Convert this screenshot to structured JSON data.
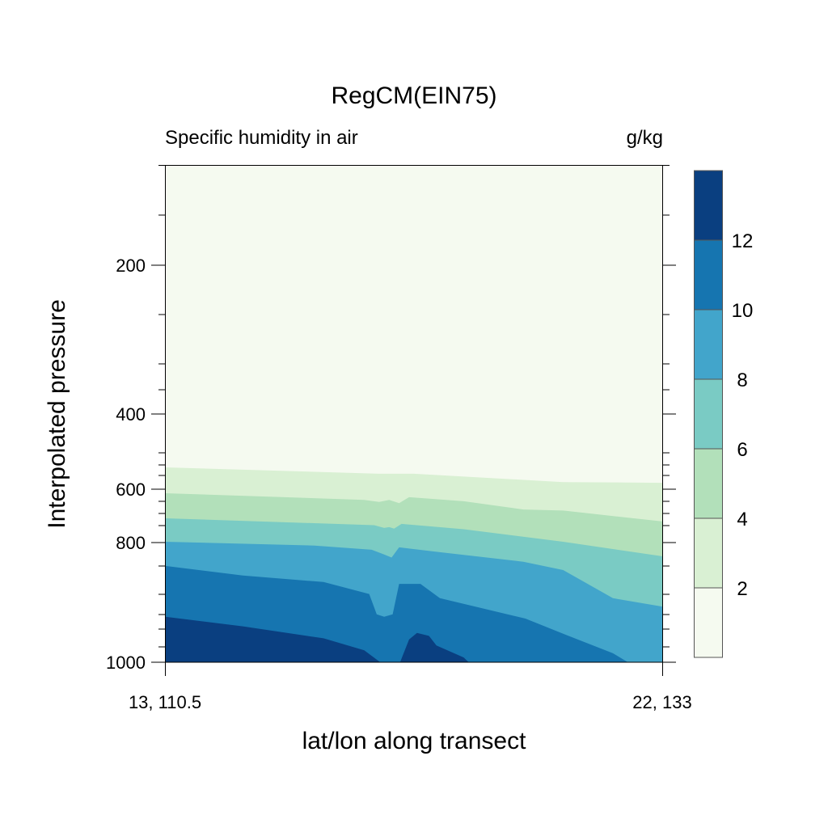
{
  "chart_data": {
    "type": "contour",
    "title": "RegCM(EIN75)",
    "left_subtitle": "Specific humidity in air",
    "right_subtitle": "g/kg",
    "xlabel": "lat/lon along transect",
    "ylabel": "Interpolated pressure",
    "x_tick_labels": [
      "13, 110.5",
      "22, 133"
    ],
    "y_ticks": [
      200,
      400,
      600,
      800,
      1000
    ],
    "ylim": [
      65,
      1000
    ],
    "colorbar": {
      "levels": [
        2,
        4,
        6,
        8,
        10,
        12
      ],
      "colors": [
        "#f5faf0",
        "#d9f0d3",
        "#b2e0ba",
        "#7acbc4",
        "#42a5cb",
        "#1675b0",
        "#0a3f80"
      ]
    },
    "contours": [
      {
        "level": 2,
        "points": [
          [
            0,
            542
          ],
          [
            0.43,
            559
          ],
          [
            0.5,
            559
          ],
          [
            0.8,
            581
          ],
          [
            1,
            583
          ]
        ]
      },
      {
        "level": 4,
        "points": [
          [
            0,
            615
          ],
          [
            0.4,
            640
          ],
          [
            0.43,
            648
          ],
          [
            0.45,
            640
          ],
          [
            0.47,
            652
          ],
          [
            0.49,
            630
          ],
          [
            0.6,
            645
          ],
          [
            0.72,
            676
          ],
          [
            0.8,
            680
          ],
          [
            1,
            721
          ]
        ]
      },
      {
        "level": 6,
        "points": [
          [
            0,
            709
          ],
          [
            0.42,
            735
          ],
          [
            0.44,
            745
          ],
          [
            0.45,
            742
          ],
          [
            0.46,
            748
          ],
          [
            0.475,
            730
          ],
          [
            0.6,
            750
          ],
          [
            0.8,
            797
          ],
          [
            1,
            823
          ]
        ]
      },
      {
        "level": 8,
        "points": [
          [
            0,
            797
          ],
          [
            0.3,
            805
          ],
          [
            0.415,
            812
          ],
          [
            0.44,
            820
          ],
          [
            0.455,
            825
          ],
          [
            0.47,
            808
          ],
          [
            0.55,
            816
          ],
          [
            0.72,
            832
          ],
          [
            0.8,
            846
          ],
          [
            0.9,
            893
          ],
          [
            1,
            907
          ]
        ]
      },
      {
        "level": 10,
        "points": [
          [
            0,
            839
          ],
          [
            0.156,
            855
          ],
          [
            0.318,
            866
          ],
          [
            0.41,
            886
          ],
          [
            0.425,
            920
          ],
          [
            0.44,
            924
          ],
          [
            0.457,
            920
          ],
          [
            0.47,
            869
          ],
          [
            0.513,
            869
          ],
          [
            0.552,
            893
          ],
          [
            0.724,
            927
          ],
          [
            0.805,
            954
          ],
          [
            0.9,
            985
          ],
          [
            0.93,
            1000
          ]
        ]
      },
      {
        "level": 12,
        "points": [
          [
            0,
            924
          ],
          [
            0.156,
            940
          ],
          [
            0.318,
            960
          ],
          [
            0.4,
            980
          ],
          [
            0.432,
            1000
          ]
        ]
      },
      {
        "level": 12,
        "points": [
          [
            0.472,
            1000
          ],
          [
            0.49,
            962
          ],
          [
            0.506,
            951
          ],
          [
            0.53,
            956
          ],
          [
            0.545,
            972
          ],
          [
            0.6,
            992
          ],
          [
            0.61,
            1000
          ]
        ]
      }
    ]
  }
}
